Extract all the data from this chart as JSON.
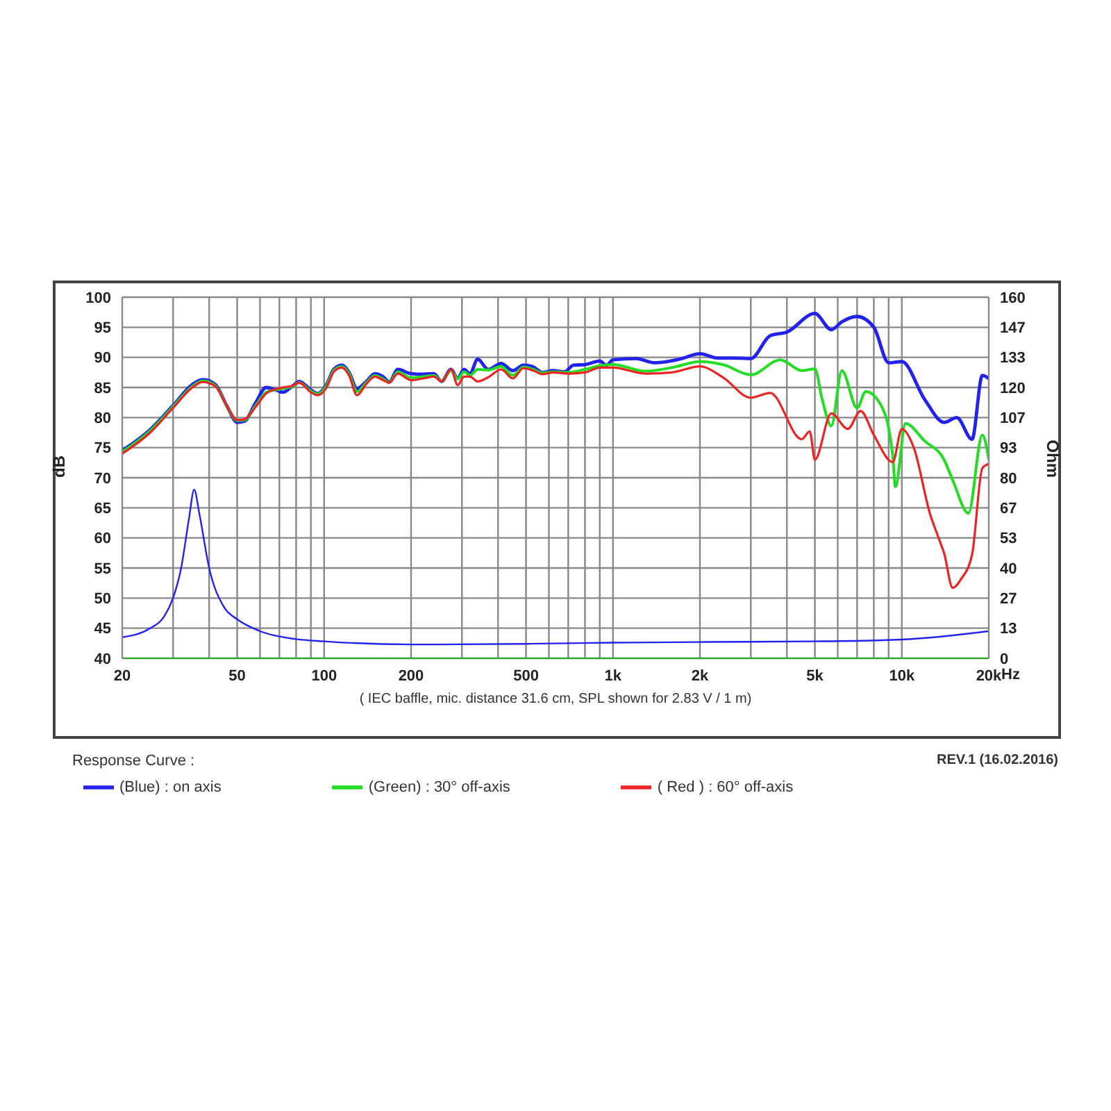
{
  "chart_data": {
    "type": "line",
    "xlabel": "( IEC baffle, mic. distance 31.6 cm, SPL shown for 2.83 V / 1 m)",
    "ylabel": "dB",
    "y2label": "Ohm",
    "log": "x",
    "grid": true,
    "legend": "bottom left",
    "line_style": "solid",
    "xlim": [
      20,
      20000
    ],
    "ylim": [
      40,
      100
    ],
    "y2lim": [
      0,
      160
    ],
    "xticks": [
      20,
      {
        "value": 30,
        "label": null
      },
      {
        "value": 40,
        "label": null
      },
      50,
      {
        "value": 60,
        "label": null
      },
      {
        "value": 70,
        "label": null
      },
      {
        "value": 80,
        "label": null
      },
      {
        "value": 90,
        "label": null
      },
      100,
      200,
      {
        "value": 300,
        "label": null
      },
      {
        "value": 400,
        "label": null
      },
      500,
      {
        "value": 600,
        "label": null
      },
      {
        "value": 700,
        "label": null
      },
      {
        "value": 800,
        "label": null
      },
      {
        "value": 900,
        "label": null
      },
      {
        "value": 1000,
        "label": "1k"
      },
      {
        "value": 2000,
        "label": "2k"
      },
      {
        "value": 3000,
        "label": null
      },
      {
        "value": 4000,
        "label": null
      },
      {
        "value": 5000,
        "label": "5k"
      },
      {
        "value": 6000,
        "label": null
      },
      {
        "value": 7000,
        "label": null
      },
      {
        "value": 8000,
        "label": null
      },
      {
        "value": 9000,
        "label": null
      },
      {
        "value": 10000,
        "label": "10k"
      },
      {
        "value": 20000,
        "label": "20k"
      }
    ],
    "yticks": [
      40,
      45,
      50,
      55,
      60,
      65,
      70,
      75,
      80,
      85,
      90,
      95,
      100
    ],
    "y2ticks": [
      0,
      {
        "value": 13.33,
        "label": "13"
      },
      {
        "value": 26.67,
        "label": "27"
      },
      40,
      {
        "value": 53.33,
        "label": "53"
      },
      {
        "value": 66.67,
        "label": "67"
      },
      80,
      {
        "value": 93.33,
        "label": "93"
      },
      {
        "value": 106.67,
        "label": "107"
      },
      120,
      {
        "value": 133.33,
        "label": "133"
      },
      {
        "value": 146.67,
        "label": "147"
      },
      160
    ],
    "annotations": [
      "Response Curve :",
      "REV.1 (16.02.2016)",
      "Hz"
    ],
    "series": [
      {
        "name": "(Blue)  : on axis",
        "color": "#2222ee",
        "x": [
          20,
          25,
          30,
          35,
          38,
          42,
          46,
          50,
          53,
          58,
          63,
          68,
          72,
          78,
          82,
          90,
          95,
          102,
          108,
          115,
          122,
          130,
          140,
          150,
          160,
          168,
          180,
          200,
          220,
          240,
          255,
          275,
          290,
          305,
          320,
          340,
          370,
          410,
          450,
          490,
          530,
          570,
          620,
          680,
          730,
          800,
          900,
          950,
          1000,
          1200,
          1400,
          1700,
          2000,
          2300,
          2600,
          3000,
          3500,
          4000,
          5000,
          5700,
          6200,
          7000,
          8000,
          9000,
          10000,
          12000,
          14000,
          15500,
          17500,
          19000,
          20000
        ],
        "values": [
          74.5,
          78,
          82,
          85.5,
          86.3,
          85.5,
          82,
          79.2,
          79.4,
          82.5,
          85,
          84.6,
          84.2,
          85.3,
          86,
          84.6,
          84,
          85.5,
          88,
          88.7,
          87.5,
          84.8,
          86,
          87.3,
          86.8,
          85.9,
          88,
          87.3,
          87.2,
          87.3,
          86,
          88,
          86.5,
          88,
          87.3,
          89.7,
          88,
          89,
          87.8,
          88.7,
          88.4,
          87.5,
          87.8,
          87.6,
          88.7,
          88.8,
          89.4,
          88.7,
          89.6,
          89.8,
          89.1,
          89.7,
          90.6,
          89.9,
          89.9,
          89.8,
          93.6,
          94.2,
          97.3,
          94.6,
          95.9,
          96.8,
          95,
          89.1,
          89.3,
          83,
          79.2,
          80,
          76.4,
          87,
          86.5
        ]
      },
      {
        "name": "(Green) : 30° off-axis",
        "color": "#22dd22",
        "x": [
          20,
          25,
          30,
          35,
          38,
          42,
          46,
          50,
          53,
          58,
          63,
          68,
          72,
          78,
          82,
          90,
          95,
          102,
          108,
          115,
          122,
          130,
          140,
          150,
          160,
          168,
          180,
          200,
          220,
          240,
          255,
          275,
          290,
          305,
          320,
          340,
          370,
          410,
          450,
          490,
          530,
          570,
          620,
          700,
          800,
          900,
          1000,
          1300,
          1600,
          2000,
          2400,
          3000,
          3800,
          4500,
          5000,
          5300,
          5700,
          6200,
          7000,
          7500,
          8500,
          9300,
          9500,
          10300,
          12000,
          14000,
          15000,
          17000,
          19000,
          20000
        ],
        "values": [
          74.3,
          77.8,
          81.8,
          85.2,
          86.1,
          85.3,
          82,
          79.5,
          79.6,
          82,
          84.2,
          84.6,
          84.8,
          85.2,
          85.8,
          84.4,
          83.9,
          85.3,
          87.8,
          88.5,
          87.3,
          84.3,
          85.8,
          87,
          86.4,
          85.8,
          87.6,
          86.6,
          86.8,
          87,
          86,
          87.8,
          86.4,
          87.6,
          87,
          88,
          87.9,
          88.5,
          87,
          88.4,
          88,
          87.4,
          87.6,
          87.5,
          88,
          88.6,
          88.8,
          87.7,
          88.3,
          89.3,
          88.8,
          87.1,
          89.6,
          87.8,
          88.1,
          83,
          78.6,
          87.8,
          81.6,
          84.3,
          81.9,
          73.7,
          68.5,
          79,
          76.1,
          73,
          69.6,
          64.1,
          77.1,
          73
        ]
      },
      {
        "name": "( Red ) : 60° off-axis",
        "color": "#ee2222",
        "x": [
          20,
          25,
          30,
          35,
          38,
          42,
          46,
          50,
          53,
          58,
          63,
          68,
          72,
          78,
          82,
          90,
          95,
          102,
          108,
          115,
          122,
          130,
          140,
          150,
          160,
          168,
          180,
          200,
          220,
          240,
          255,
          275,
          290,
          305,
          320,
          340,
          370,
          410,
          450,
          490,
          530,
          570,
          620,
          700,
          800,
          900,
          1000,
          1300,
          1600,
          2000,
          2400,
          3000,
          3500,
          4500,
          4800,
          5000,
          5700,
          6500,
          7200,
          8000,
          9300,
          10000,
          11000,
          12500,
          13500,
          14000,
          15000,
          16000,
          17500,
          19000,
          20000
        ],
        "values": [
          74,
          77.5,
          81.6,
          85,
          85.9,
          85.2,
          82,
          79.6,
          79.7,
          81.8,
          84,
          84.7,
          85,
          85.3,
          85.8,
          84.2,
          83.7,
          85,
          87.6,
          88.3,
          87,
          83.7,
          85.6,
          86.8,
          86.2,
          85.8,
          87.3,
          86.2,
          86.5,
          86.8,
          86,
          88,
          85.4,
          86.8,
          86.8,
          86,
          86.7,
          88,
          86.5,
          88.2,
          87.8,
          87.2,
          87.5,
          87.3,
          87.5,
          88.3,
          88.3,
          87.3,
          87.5,
          88.5,
          86.7,
          83.3,
          84.1,
          76.4,
          77.7,
          73,
          80.7,
          78.1,
          81.1,
          77.1,
          72.6,
          78.1,
          75,
          64.1,
          59.6,
          57.5,
          51.7,
          53.1,
          57.2,
          71.6,
          72.3
        ]
      },
      {
        "color": "#2222ee",
        "axis": "y2",
        "x": [
          20,
          25,
          28,
          30,
          32,
          34,
          35.5,
          37,
          40,
          45,
          50,
          60,
          80,
          100,
          200,
          500,
          1000,
          2000,
          5000,
          10000,
          20000
        ],
        "values": [
          9.3,
          13.3,
          18.7,
          26.7,
          40,
          61.3,
          74.7,
          64,
          40,
          22.7,
          17.3,
          12,
          8.5,
          7.5,
          6.1,
          6.4,
          6.9,
          7.2,
          7.5,
          8.3,
          12
        ]
      }
    ]
  }
}
